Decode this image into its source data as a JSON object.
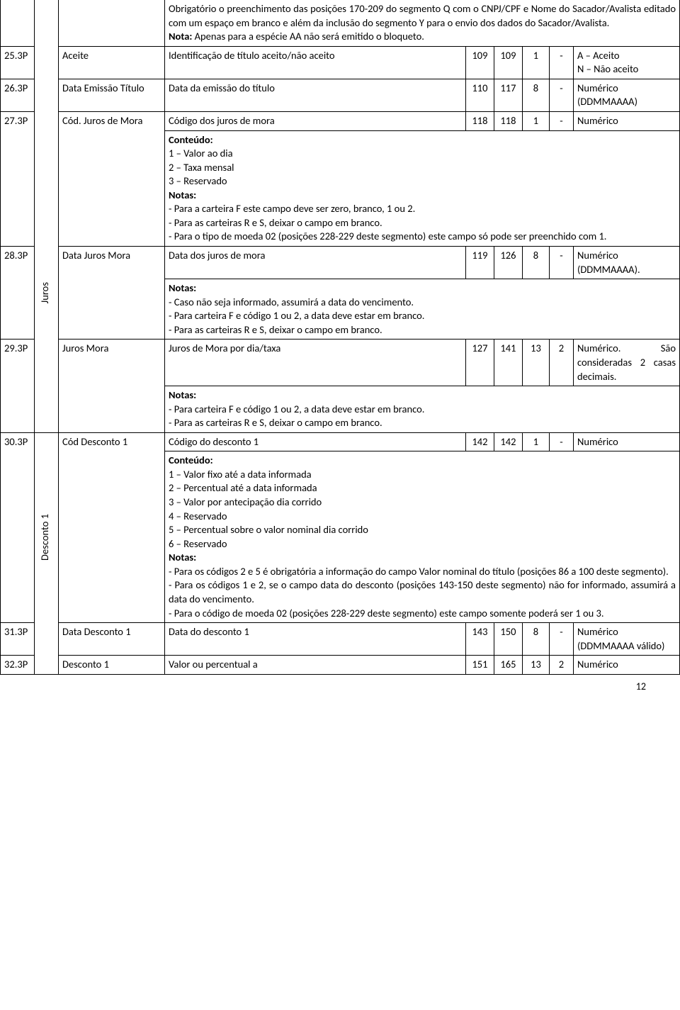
{
  "topNote": {
    "line1": "Obrigatório o preenchimento das posições 170-209 do segmento Q com o CNPJ/CPF e Nome do Sacador/Avalista editado com um espaço em branco e além da inclusão do segmento Y para o envio dos dados do Sacador/Avalista.",
    "notaLabel": "Nota:",
    "notaText": " Apenas para a espécie AA não será emitido o bloqueto."
  },
  "r25": {
    "id": "25.3P",
    "field": "Aceite",
    "desc": "Identificação de título aceito/não aceito",
    "from": "109",
    "to": "109",
    "len": "1",
    "dec": "-",
    "type": "A – Aceito\nN – Não aceito"
  },
  "r26": {
    "id": "26.3P",
    "field": "Data Emissão Título",
    "desc": "Data da emissão do título",
    "from": "110",
    "to": "117",
    "len": "8",
    "dec": "-",
    "type": "Numérico (DDMMAAAA)"
  },
  "jurosLabel": "Juros",
  "r27": {
    "id": "27.3P",
    "field": "Cód. Juros de Mora",
    "desc": "Código dos juros de mora",
    "from": "118",
    "to": "118",
    "len": "1",
    "dec": "-",
    "type": "Numérico",
    "contLabel": "Conteúdo:",
    "c1": "1 – Valor ao dia",
    "c2": "2 – Taxa mensal",
    "c3": "3 – Reservado",
    "notasLabel": "Notas:",
    "n1": "- Para a carteira F este campo deve ser zero, branco, 1 ou 2.",
    "n2": "- Para as carteiras R e S, deixar o campo em branco.",
    "n3": "- Para o tipo de moeda 02 (posições 228-229 deste segmento) este campo só pode ser preenchido com 1."
  },
  "r28": {
    "id": "28.3P",
    "field": "Data Juros Mora",
    "desc": "Data dos juros de mora",
    "from": "119",
    "to": "126",
    "len": "8",
    "dec": "-",
    "type": "Numérico (DDMMAAAA).",
    "notasLabel": "Notas:",
    "n1": "- Caso não seja informado, assumirá a data do vencimento.",
    "n2": "- Para carteira F e código 1 ou 2, a data deve estar em branco.",
    "n3": "- Para as carteiras R e S, deixar o campo em branco."
  },
  "r29": {
    "id": "29.3P",
    "field": "Juros Mora",
    "desc": "Juros de Mora por dia/taxa",
    "from": "127",
    "to": "141",
    "len": "13",
    "dec": "2",
    "type": "Numérico. São consideradas 2 casas decimais.",
    "notasLabel": "Notas:",
    "n1": "- Para carteira F e código 1 ou 2, a data deve estar em branco.",
    "n2": "- Para as carteiras R e S, deixar o campo em branco."
  },
  "descontoLabel": "Desconto 1",
  "r30": {
    "id": "30.3P",
    "field": "Cód Desconto 1",
    "desc": "Código do desconto 1",
    "from": "142",
    "to": "142",
    "len": "1",
    "dec": "-",
    "type": "Numérico",
    "contLabel": "Conteúdo:",
    "c1": "1 – Valor fixo até a data informada",
    "c2": "2 – Percentual até a data informada",
    "c3": "3 – Valor por antecipação dia corrido",
    "c4": "4 – Reservado",
    "c5": "5 – Percentual sobre o valor nominal dia corrido",
    "c6": "6 – Reservado",
    "notasLabel": "Notas:",
    "n1": "- Para os códigos 2 e 5 é obrigatória a informação do campo Valor nominal do título (posições 86 a 100 deste segmento).",
    "n2": "- Para os códigos 1 e 2, se o campo data do desconto (posições 143-150 deste segmento) não for informado, assumirá a data do vencimento.",
    "n3": "- Para o código de moeda 02 (posições 228-229 deste segmento) este campo somente poderá ser 1 ou 3."
  },
  "r31": {
    "id": "31.3P",
    "field": "Data Desconto 1",
    "desc": "Data do desconto 1",
    "from": "143",
    "to": "150",
    "len": "8",
    "dec": "-",
    "type": "Numérico (DDMMAAAA válido)"
  },
  "r32": {
    "id": "32.3P",
    "field": "Desconto 1",
    "desc": "Valor ou percentual a",
    "from": "151",
    "to": "165",
    "len": "13",
    "dec": "2",
    "type": "Numérico"
  },
  "pageNum": "12"
}
